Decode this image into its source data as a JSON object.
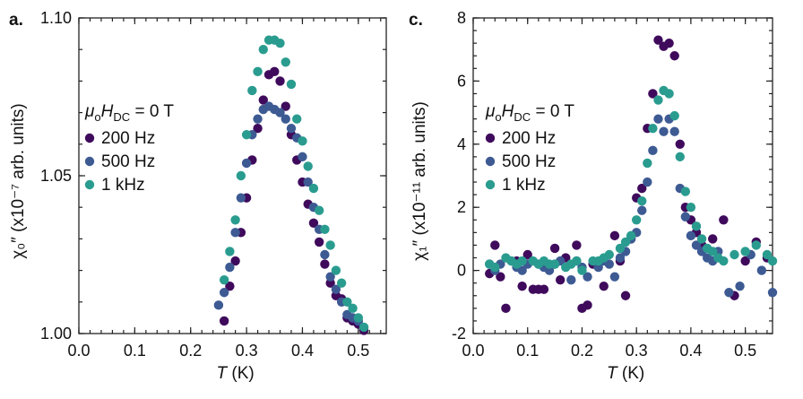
{
  "colors": {
    "200 Hz": "#3f0a5c",
    "500 Hz": "#3d5a93",
    "1 kHz": "#2a9c8f"
  },
  "chart_data": [
    {
      "type": "scatter",
      "panel_label": "a.",
      "title": "",
      "xlabel_italic": "T",
      "xlabel_rest": " (K)",
      "ylabel": "χ₀″ (x10⁻⁷ arb. units)",
      "xlim": [
        0.0,
        0.55
      ],
      "ylim": [
        1.0,
        1.1
      ],
      "xticks": [
        0.0,
        0.1,
        0.2,
        0.3,
        0.4,
        0.5
      ],
      "xtick_labels": [
        "0.0",
        "0.1",
        "0.2",
        "0.3",
        "0.4",
        "0.5"
      ],
      "yticks": [
        1.0,
        1.05,
        1.1
      ],
      "ytick_labels": [
        "1.00",
        "1.05",
        "1.10"
      ],
      "legend_title_sym": "μ",
      "legend_title_sub": "o",
      "legend_title_H": "H",
      "legend_title_Hsub": "DC",
      "legend_title_rest": " = 0 T",
      "legend_position": "upper-left",
      "series": [
        {
          "name": "200 Hz",
          "x": [
            0.26,
            0.27,
            0.28,
            0.29,
            0.3,
            0.31,
            0.32,
            0.33,
            0.34,
            0.35,
            0.36,
            0.37,
            0.38,
            0.39,
            0.4,
            0.41,
            0.42,
            0.43,
            0.44,
            0.45,
            0.46,
            0.47,
            0.48,
            0.49,
            0.5,
            0.51
          ],
          "y": [
            1.004,
            1.015,
            1.023,
            1.032,
            1.043,
            1.055,
            1.065,
            1.074,
            1.082,
            1.083,
            1.08,
            1.072,
            1.063,
            1.055,
            1.048,
            1.041,
            1.035,
            1.029,
            1.022,
            1.016,
            1.012,
            1.011,
            1.005,
            1.004,
            1.003,
            1.001
          ]
        },
        {
          "name": "500 Hz",
          "x": [
            0.25,
            0.26,
            0.27,
            0.28,
            0.29,
            0.3,
            0.31,
            0.32,
            0.33,
            0.34,
            0.35,
            0.36,
            0.37,
            0.38,
            0.39,
            0.4,
            0.41,
            0.42,
            0.43,
            0.44,
            0.45,
            0.46,
            0.47,
            0.48,
            0.49,
            0.5
          ],
          "y": [
            1.009,
            1.013,
            1.021,
            1.032,
            1.043,
            1.054,
            1.063,
            1.068,
            1.071,
            1.072,
            1.071,
            1.07,
            1.068,
            1.065,
            1.062,
            1.056,
            1.048,
            1.04,
            1.033,
            1.025,
            1.018,
            1.014,
            1.01,
            1.006,
            1.005,
            1.004
          ]
        },
        {
          "name": "1 kHz",
          "x": [
            0.26,
            0.27,
            0.28,
            0.29,
            0.3,
            0.31,
            0.32,
            0.33,
            0.34,
            0.35,
            0.36,
            0.37,
            0.38,
            0.39,
            0.4,
            0.41,
            0.42,
            0.43,
            0.44,
            0.45,
            0.46,
            0.47,
            0.48,
            0.49,
            0.5,
            0.51
          ],
          "y": [
            1.017,
            1.026,
            1.036,
            1.05,
            1.063,
            1.077,
            1.083,
            1.09,
            1.093,
            1.093,
            1.092,
            1.086,
            1.079,
            1.068,
            1.061,
            1.053,
            1.046,
            1.039,
            1.033,
            1.028,
            1.02,
            1.016,
            1.01,
            1.008,
            1.005,
            1.002
          ]
        }
      ]
    },
    {
      "type": "scatter",
      "panel_label": "c.",
      "title": "",
      "xlabel_italic": "T",
      "xlabel_rest": " (K)",
      "ylabel": "χ₁″ (x10⁻¹¹ arb. units)",
      "xlim": [
        0.0,
        0.55
      ],
      "ylim": [
        -2,
        8
      ],
      "xticks": [
        0.0,
        0.1,
        0.2,
        0.3,
        0.4,
        0.5
      ],
      "xtick_labels": [
        "0.0",
        "0.1",
        "0.2",
        "0.3",
        "0.4",
        "0.5"
      ],
      "yticks": [
        -2,
        0,
        2,
        4,
        6,
        8
      ],
      "ytick_labels": [
        "-2",
        "0",
        "2",
        "4",
        "6",
        "8"
      ],
      "legend_title_sym": "μ",
      "legend_title_sub": "o",
      "legend_title_H": "H",
      "legend_title_Hsub": "DC",
      "legend_title_rest": " = 0 T",
      "legend_position": "upper-left",
      "series": [
        {
          "name": "200 Hz",
          "x": [
            0.03,
            0.04,
            0.05,
            0.06,
            0.08,
            0.09,
            0.1,
            0.11,
            0.12,
            0.13,
            0.15,
            0.16,
            0.17,
            0.19,
            0.2,
            0.21,
            0.22,
            0.24,
            0.26,
            0.27,
            0.28,
            0.29,
            0.3,
            0.31,
            0.32,
            0.33,
            0.34,
            0.35,
            0.36,
            0.37,
            0.38,
            0.39,
            0.4,
            0.41,
            0.42,
            0.44,
            0.46,
            0.48,
            0.5,
            0.52,
            0.54
          ],
          "y": [
            -0.1,
            0.8,
            -0.2,
            -1.2,
            0.3,
            -0.5,
            0.5,
            -0.6,
            -0.6,
            -0.6,
            0.7,
            -0.3,
            0.4,
            0.8,
            -1.2,
            -1.1,
            0.2,
            -0.5,
            1.1,
            0.3,
            -0.8,
            1.0,
            2.3,
            2.6,
            4.5,
            5.6,
            7.3,
            7.1,
            7.2,
            6.8,
            4.0,
            2.0,
            1.6,
            1.2,
            0.8,
            1.0,
            1.6,
            -0.8,
            0.3,
            0.9,
            0.4
          ]
        },
        {
          "name": "500 Hz",
          "x": [
            0.03,
            0.04,
            0.05,
            0.07,
            0.08,
            0.09,
            0.1,
            0.12,
            0.13,
            0.14,
            0.15,
            0.16,
            0.18,
            0.19,
            0.2,
            0.21,
            0.23,
            0.24,
            0.25,
            0.26,
            0.27,
            0.28,
            0.29,
            0.3,
            0.31,
            0.32,
            0.33,
            0.34,
            0.35,
            0.36,
            0.37,
            0.38,
            0.39,
            0.4,
            0.41,
            0.42,
            0.43,
            0.44,
            0.45,
            0.47,
            0.49,
            0.51,
            0.53,
            0.55
          ],
          "y": [
            0.2,
            0.0,
            0.2,
            0.3,
            0.1,
            0.0,
            0.2,
            0.2,
            0.1,
            0.0,
            0.2,
            0.3,
            -0.3,
            0.3,
            0.1,
            -0.2,
            0.1,
            0.3,
            0.2,
            -0.2,
            0.4,
            0.6,
            1.0,
            1.2,
            1.9,
            2.8,
            3.8,
            4.8,
            4.4,
            4.8,
            4.4,
            2.6,
            1.7,
            1.1,
            0.8,
            0.6,
            0.4,
            0.3,
            0.6,
            -0.7,
            -0.5,
            0.5,
            0.0,
            -0.7
          ]
        },
        {
          "name": "1 kHz",
          "x": [
            0.03,
            0.04,
            0.06,
            0.07,
            0.08,
            0.09,
            0.11,
            0.12,
            0.13,
            0.14,
            0.15,
            0.17,
            0.18,
            0.19,
            0.2,
            0.22,
            0.23,
            0.24,
            0.25,
            0.27,
            0.28,
            0.29,
            0.3,
            0.31,
            0.32,
            0.33,
            0.34,
            0.35,
            0.36,
            0.37,
            0.38,
            0.39,
            0.4,
            0.41,
            0.42,
            0.43,
            0.44,
            0.45,
            0.46,
            0.48,
            0.5,
            0.52,
            0.54,
            0.55
          ],
          "y": [
            0.2,
            0.1,
            0.4,
            0.3,
            0.2,
            0.3,
            0.3,
            0.2,
            0.3,
            0.2,
            0.2,
            0.1,
            0.2,
            0.3,
            0.0,
            0.3,
            0.3,
            0.4,
            0.5,
            0.7,
            0.9,
            1.1,
            1.6,
            2.2,
            3.4,
            4.5,
            5.4,
            5.7,
            5.6,
            4.9,
            3.6,
            2.5,
            2.0,
            1.4,
            1.0,
            0.7,
            0.6,
            0.4,
            0.3,
            0.5,
            0.6,
            0.8,
            0.5,
            0.3
          ]
        }
      ]
    }
  ]
}
